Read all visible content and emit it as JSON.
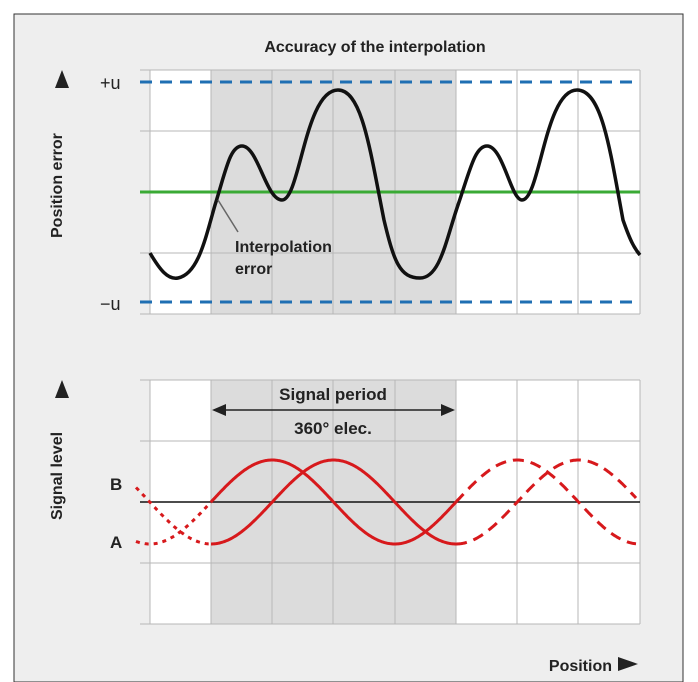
{
  "title": "Accuracy of the interpolation",
  "top_panel": {
    "ylabel": "Position error",
    "tick_plus": "+u",
    "tick_minus": "−u",
    "annotation_line1": "Interpolation",
    "annotation_line2": "error"
  },
  "bottom_panel": {
    "ylabel": "Signal level",
    "signal_period_label": "Signal period",
    "elec_label": "360° elec.",
    "curve_b_label": "B",
    "curve_a_label": "A"
  },
  "xlabel": "Position",
  "colors": {
    "background": "#eeeeee",
    "shaded": "#dcdcdc",
    "grid": "#b7b7b7",
    "error_curve": "#111111",
    "reference_line": "#3aaa35",
    "limit_lines": "#1f6fb3",
    "signal_curves": "#d7191c"
  }
}
